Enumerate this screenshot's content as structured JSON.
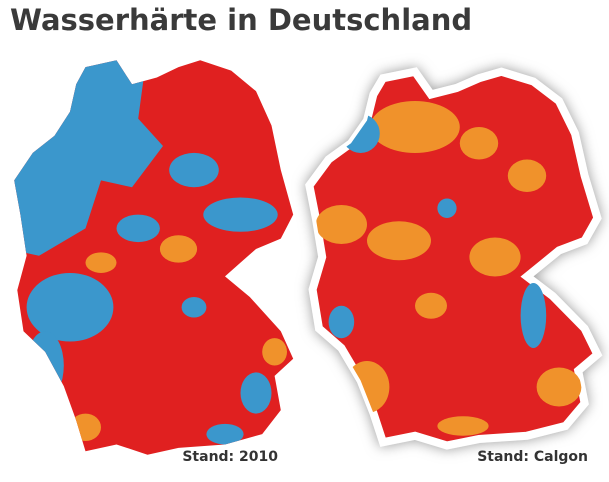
{
  "title": "Wasserhärte in Deutschland",
  "captions": [
    "Stand: 2010",
    "Stand: Calgon"
  ]
}
